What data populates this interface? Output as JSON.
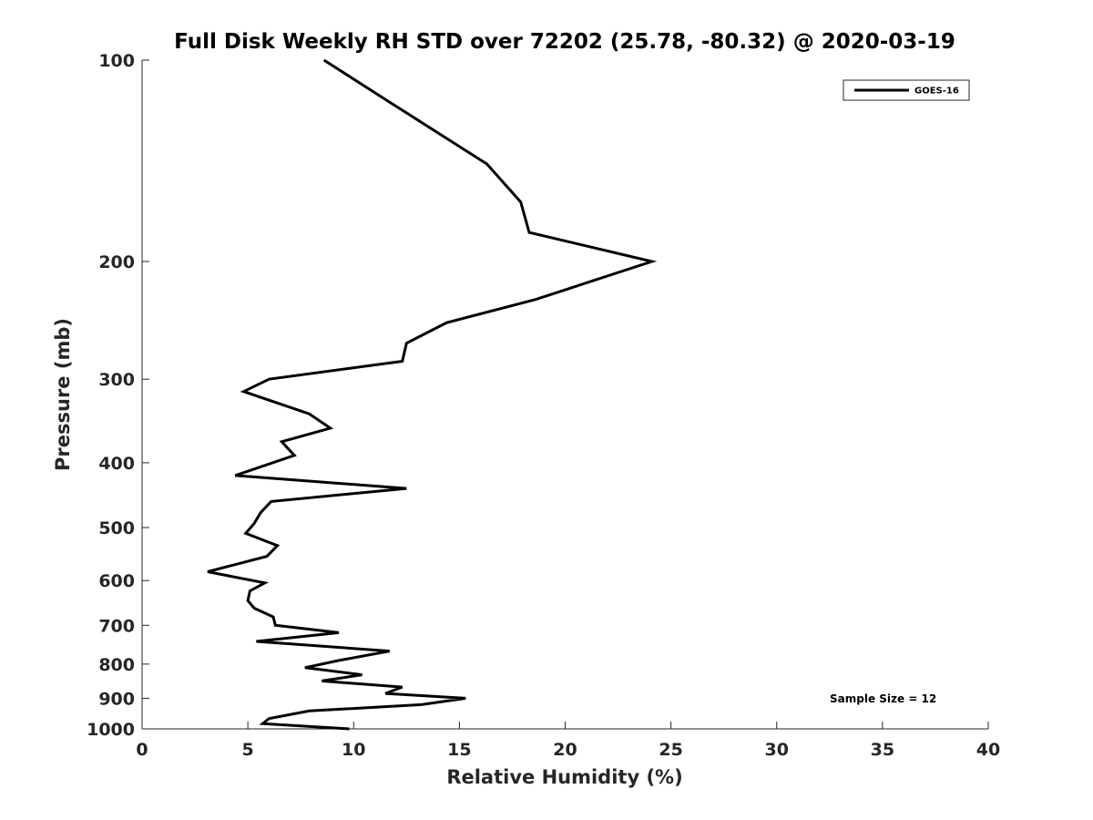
{
  "chart_data": {
    "type": "line",
    "title": "Full Disk Weekly RH STD over 72202 (25.78, -80.32) @ 2020-03-19",
    "xlabel": "Relative Humidity (%)",
    "ylabel": "Pressure (mb)",
    "xlim": [
      0,
      40
    ],
    "ylim": [
      100,
      1000
    ],
    "y_scale": "log",
    "y_reversed": true,
    "x_ticks": [
      0,
      5,
      10,
      15,
      20,
      25,
      30,
      35,
      40
    ],
    "y_ticks": [
      100,
      200,
      300,
      400,
      500,
      600,
      700,
      800,
      900,
      1000
    ],
    "grid": false,
    "legend_placement": "top-right",
    "series": [
      {
        "name": "GOES-16",
        "color": "#000000",
        "x": [
          8.6,
          11.6,
          16.3,
          17.9,
          18.3,
          24.1,
          18.6,
          14.4,
          12.5,
          12.3,
          6.0,
          4.8,
          7.9,
          8.9,
          6.6,
          7.2,
          4.4,
          12.5,
          6.1,
          5.6,
          5.3,
          4.9,
          6.4,
          5.9,
          3.1,
          5.8,
          5.1,
          5.0,
          5.3,
          6.2,
          6.3,
          9.3,
          5.4,
          11.7,
          9.3,
          7.7,
          10.4,
          8.5,
          12.3,
          11.5,
          15.3,
          13.2,
          7.9,
          6.0,
          5.7,
          9.8
        ],
        "y": [
          100,
          115,
          143,
          163,
          181,
          200,
          228,
          247,
          265,
          282,
          300,
          313,
          338,
          355,
          372,
          390,
          418,
          437,
          457,
          475,
          493,
          510,
          532,
          552,
          582,
          605,
          622,
          643,
          660,
          680,
          700,
          718,
          740,
          765,
          790,
          810,
          830,
          848,
          866,
          885,
          900,
          920,
          940,
          965,
          982,
          1000
        ]
      }
    ],
    "annotations": [
      "Sample Size = 12"
    ]
  }
}
